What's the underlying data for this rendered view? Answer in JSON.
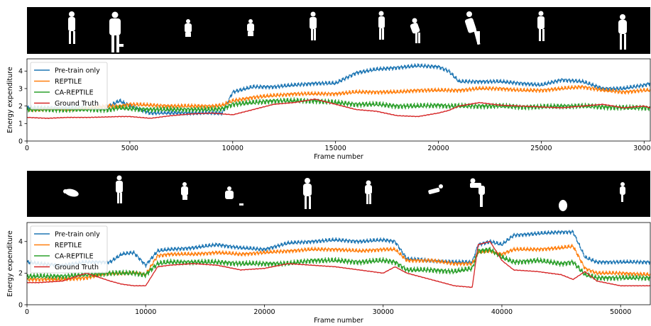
{
  "colors": {
    "pretrain": "#1f77b4",
    "reptile": "#ff7f0e",
    "careptile": "#2ca02c",
    "truth": "#d62728",
    "silhouette_strip_bg": "#000000",
    "silhouette": "#ffffff"
  },
  "silhouette_strips": [
    {
      "figure_count": 11
    },
    {
      "figure_count": 11
    }
  ],
  "chart_data": [
    {
      "type": "line",
      "xlabel": "Frame number",
      "ylabel": "Energy expenditure",
      "xlim": [
        0,
        30300
      ],
      "ylim": [
        0,
        4.7
      ],
      "xticks": [
        0,
        5000,
        10000,
        15000,
        20000,
        25000,
        30000
      ],
      "yticks": [
        0,
        1,
        2,
        3,
        4
      ],
      "grid": false,
      "legend_position": "upper-left",
      "x": [
        0,
        1000,
        2000,
        3000,
        4000,
        4500,
        5000,
        6000,
        7000,
        8000,
        9000,
        9500,
        10000,
        11000,
        12000,
        13000,
        14000,
        15000,
        16000,
        17000,
        18000,
        19000,
        20000,
        20500,
        21000,
        22000,
        23000,
        24000,
        25000,
        26000,
        27000,
        28000,
        29000,
        30000,
        30300
      ],
      "series": [
        {
          "name": "Pre-train only",
          "key": "pretrain",
          "values": [
            1.9,
            1.9,
            1.9,
            1.9,
            2.0,
            2.3,
            2.0,
            1.6,
            1.6,
            1.6,
            1.6,
            1.6,
            2.8,
            3.1,
            3.1,
            3.2,
            3.3,
            3.3,
            3.9,
            4.1,
            4.2,
            4.3,
            4.25,
            4.0,
            3.4,
            3.4,
            3.4,
            3.3,
            3.2,
            3.5,
            3.4,
            3.0,
            3.0,
            3.2,
            3.3
          ],
          "noise": 0.14
        },
        {
          "name": "REPTILE",
          "key": "reptile",
          "values": [
            1.8,
            1.8,
            1.8,
            1.9,
            2.0,
            2.0,
            2.1,
            2.05,
            2.0,
            2.0,
            2.0,
            2.05,
            2.3,
            2.5,
            2.6,
            2.7,
            2.7,
            2.7,
            2.8,
            2.8,
            2.8,
            2.9,
            2.9,
            2.9,
            2.9,
            3.0,
            3.0,
            2.9,
            2.9,
            3.0,
            3.1,
            2.9,
            2.8,
            2.9,
            2.9
          ],
          "noise": 0.14
        },
        {
          "name": "CA-REPTILE",
          "key": "careptile",
          "values": [
            1.8,
            1.8,
            1.8,
            1.8,
            1.8,
            1.9,
            1.85,
            1.8,
            1.8,
            1.8,
            1.8,
            1.85,
            2.1,
            2.2,
            2.3,
            2.3,
            2.3,
            2.2,
            2.1,
            2.1,
            2.0,
            2.0,
            2.05,
            2.0,
            2.0,
            2.0,
            2.0,
            1.95,
            1.95,
            2.0,
            2.0,
            1.95,
            1.9,
            1.9,
            1.9
          ],
          "noise": 0.18
        },
        {
          "name": "Ground Truth",
          "key": "truth",
          "values": [
            1.35,
            1.3,
            1.35,
            1.35,
            1.38,
            1.4,
            1.4,
            1.3,
            1.45,
            1.55,
            1.6,
            1.55,
            1.5,
            1.8,
            2.1,
            2.2,
            2.4,
            2.1,
            1.8,
            1.7,
            1.45,
            1.4,
            1.6,
            1.75,
            2.0,
            2.2,
            2.05,
            2.0,
            1.95,
            1.9,
            2.0,
            2.1,
            1.9,
            2.0,
            1.9
          ],
          "noise": 0.02
        }
      ]
    },
    {
      "type": "line",
      "xlabel": "Frame number",
      "ylabel": "Energy expenditure",
      "xlim": [
        0,
        52500
      ],
      "ylim": [
        0,
        5.2
      ],
      "xticks": [
        0,
        10000,
        20000,
        30000,
        40000,
        50000
      ],
      "yticks": [
        0,
        2,
        4
      ],
      "grid": false,
      "legend_position": "upper-left",
      "x": [
        0,
        1000,
        3000,
        5000,
        7000,
        8000,
        9000,
        10000,
        11000,
        12000,
        14000,
        16000,
        18000,
        20000,
        22000,
        24000,
        26000,
        28000,
        30000,
        31000,
        32000,
        34000,
        36000,
        37500,
        38000,
        39000,
        40000,
        41000,
        43000,
        45000,
        46000,
        47000,
        48000,
        50000,
        52500
      ],
      "series": [
        {
          "name": "Pre-train only",
          "key": "pretrain",
          "values": [
            2.7,
            2.6,
            2.5,
            2.7,
            2.7,
            3.2,
            3.3,
            2.5,
            3.4,
            3.5,
            3.6,
            3.8,
            3.6,
            3.5,
            3.9,
            4.0,
            4.1,
            4.0,
            4.1,
            4.0,
            2.9,
            2.8,
            2.7,
            2.7,
            3.8,
            4.0,
            3.8,
            4.4,
            4.5,
            4.6,
            4.6,
            3.0,
            2.7,
            2.7,
            2.7
          ],
          "noise": 0.15
        },
        {
          "name": "REPTILE",
          "key": "reptile",
          "values": [
            1.6,
            1.6,
            1.6,
            1.7,
            2.0,
            2.0,
            2.0,
            1.9,
            3.1,
            3.2,
            3.2,
            3.3,
            3.2,
            3.3,
            3.4,
            3.5,
            3.5,
            3.4,
            3.5,
            3.5,
            2.8,
            2.8,
            2.6,
            2.6,
            3.3,
            3.4,
            3.2,
            3.5,
            3.5,
            3.6,
            3.7,
            2.3,
            2.0,
            2.0,
            1.9
          ],
          "noise": 0.15
        },
        {
          "name": "CA-REPTILE",
          "key": "careptile",
          "values": [
            1.8,
            1.8,
            1.8,
            1.9,
            2.0,
            2.0,
            2.0,
            1.9,
            2.6,
            2.7,
            2.7,
            2.7,
            2.6,
            2.6,
            2.6,
            2.8,
            2.8,
            2.7,
            2.8,
            2.7,
            2.2,
            2.2,
            2.1,
            2.3,
            3.4,
            3.5,
            3.0,
            2.7,
            2.8,
            2.6,
            2.7,
            1.9,
            1.7,
            1.7,
            1.7
          ],
          "noise": 0.2
        },
        {
          "name": "Ground Truth",
          "key": "truth",
          "values": [
            1.4,
            1.4,
            1.5,
            2.0,
            1.5,
            1.3,
            1.2,
            1.2,
            2.4,
            2.5,
            2.6,
            2.5,
            2.2,
            2.3,
            2.6,
            2.5,
            2.4,
            2.2,
            2.0,
            2.4,
            2.0,
            1.6,
            1.2,
            1.1,
            3.8,
            4.0,
            2.8,
            2.2,
            2.1,
            1.9,
            1.6,
            2.1,
            1.5,
            1.2,
            1.2
          ],
          "noise": 0.02
        }
      ]
    }
  ]
}
